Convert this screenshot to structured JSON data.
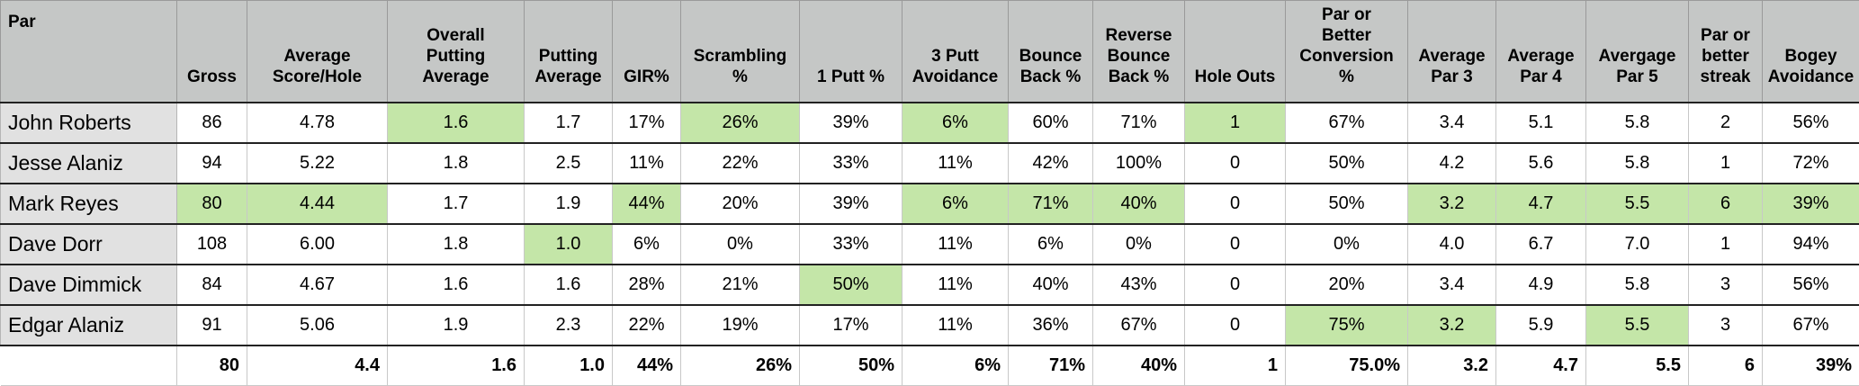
{
  "header": {
    "corner": "Par",
    "columns": [
      [
        "Gross"
      ],
      [
        "Average",
        "Score/Hole"
      ],
      [
        "Overall",
        "Putting",
        "Average"
      ],
      [
        "Putting",
        "Average"
      ],
      [
        "GIR%"
      ],
      [
        "Scrambling",
        "%"
      ],
      [
        "1 Putt %"
      ],
      [
        "3 Putt",
        "Avoidance"
      ],
      [
        "Bounce",
        "Back %"
      ],
      [
        "Reverse",
        "Bounce",
        "Back %"
      ],
      [
        "Hole Outs"
      ],
      [
        "Par or",
        "Better",
        "Conversion",
        "%"
      ],
      [
        "Average",
        "Par 3"
      ],
      [
        "Average",
        "Par 4"
      ],
      [
        "Avergage",
        "Par 5"
      ],
      [
        "Par or",
        "better",
        "streak"
      ],
      [
        "Bogey",
        "Avoidance"
      ]
    ]
  },
  "rows": [
    {
      "name": "John Roberts",
      "values": [
        "86",
        "4.78",
        "1.6",
        "1.7",
        "17%",
        "26%",
        "39%",
        "6%",
        "60%",
        "71%",
        "1",
        "67%",
        "3.4",
        "5.1",
        "5.8",
        "2",
        "56%"
      ],
      "highlight": [
        2,
        5,
        7,
        10
      ]
    },
    {
      "name": "Jesse Alaniz",
      "values": [
        "94",
        "5.22",
        "1.8",
        "2.5",
        "11%",
        "22%",
        "33%",
        "11%",
        "42%",
        "100%",
        "0",
        "50%",
        "4.2",
        "5.6",
        "5.8",
        "1",
        "72%"
      ],
      "highlight": []
    },
    {
      "name": "Mark Reyes",
      "values": [
        "80",
        "4.44",
        "1.7",
        "1.9",
        "44%",
        "20%",
        "39%",
        "6%",
        "71%",
        "40%",
        "0",
        "50%",
        "3.2",
        "4.7",
        "5.5",
        "6",
        "39%"
      ],
      "highlight": [
        0,
        1,
        4,
        7,
        8,
        9,
        12,
        13,
        14,
        15,
        16
      ]
    },
    {
      "name": "Dave Dorr",
      "values": [
        "108",
        "6.00",
        "1.8",
        "1.0",
        "6%",
        "0%",
        "33%",
        "11%",
        "6%",
        "0%",
        "0",
        "0%",
        "4.0",
        "6.7",
        "7.0",
        "1",
        "94%"
      ],
      "highlight": [
        3
      ]
    },
    {
      "name": "Dave Dimmick",
      "values": [
        "84",
        "4.67",
        "1.6",
        "1.6",
        "28%",
        "21%",
        "50%",
        "11%",
        "40%",
        "43%",
        "0",
        "20%",
        "3.4",
        "4.9",
        "5.8",
        "3",
        "56%"
      ],
      "highlight": [
        6
      ]
    },
    {
      "name": "Edgar Alaniz",
      "values": [
        "91",
        "5.06",
        "1.9",
        "2.3",
        "22%",
        "19%",
        "17%",
        "11%",
        "36%",
        "67%",
        "0",
        "75%",
        "3.2",
        "5.9",
        "5.5",
        "3",
        "67%"
      ],
      "highlight": [
        11,
        12,
        14
      ]
    }
  ],
  "best": {
    "label": "",
    "values": [
      "80",
      "4.4",
      "1.6",
      "1.0",
      "44%",
      "26%",
      "50%",
      "6%",
      "71%",
      "40%",
      "1",
      "75.0%",
      "3.2",
      "4.7",
      "5.5",
      "6",
      "39%"
    ]
  }
}
